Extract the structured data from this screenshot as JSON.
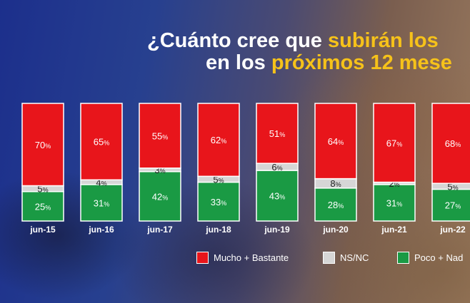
{
  "title": {
    "line1_prefix": "¿Cuánto cree que ",
    "line1_highlight": "subirán los",
    "line2_prefix": "en los ",
    "line2_highlight": "próximos 12 mese"
  },
  "colors": {
    "mucho": "#e8151b",
    "nsnc": "#d6d6d6",
    "poco": "#1a9a44",
    "title_highlight": "#f6c21a"
  },
  "legend": [
    {
      "label": "Mucho + Bastante",
      "color": "#e8151b"
    },
    {
      "label": "NS/NC",
      "color": "#d6d6d6"
    },
    {
      "label": "Poco + Nad",
      "color": "#1a9a44"
    }
  ],
  "chart_data": {
    "type": "bar",
    "stacked": true,
    "percent": true,
    "categories": [
      "jun-15",
      "jun-16",
      "jun-17",
      "jun-18",
      "jun-19",
      "jun-20",
      "jun-21",
      "jun-22"
    ],
    "series": [
      {
        "name": "Poco + Nad",
        "values": [
          25,
          31,
          42,
          33,
          43,
          28,
          31,
          27
        ]
      },
      {
        "name": "NS/NC",
        "values": [
          5,
          4,
          3,
          5,
          6,
          8,
          2,
          5
        ]
      },
      {
        "name": "Mucho + Bastante",
        "values": [
          70,
          65,
          55,
          62,
          51,
          64,
          67,
          68
        ]
      }
    ],
    "ylim": [
      0,
      100
    ],
    "unit": "%",
    "grid": false,
    "legend_position": "bottom"
  }
}
